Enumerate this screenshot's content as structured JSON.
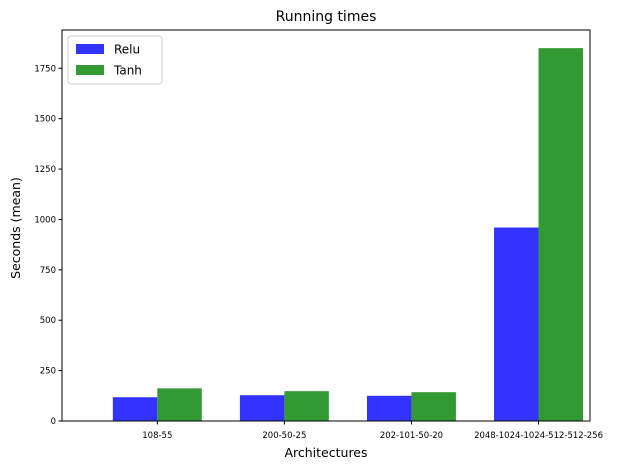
{
  "chart_data": {
    "type": "bar",
    "title": "Running times",
    "xlabel": "Architectures",
    "ylabel": "Seconds (mean)",
    "categories": [
      "108-55",
      "200-50-25",
      "202-101-50-20",
      "2048-1024-1024-512-512-256"
    ],
    "series": [
      {
        "name": "Relu",
        "color": "#3333ff",
        "values": [
          118,
          128,
          125,
          960
        ]
      },
      {
        "name": "Tanh",
        "color": "#339933",
        "values": [
          162,
          148,
          143,
          1850
        ]
      }
    ],
    "ylim": [
      0,
      1940
    ],
    "yticks": [
      0,
      250,
      500,
      750,
      1000,
      1250,
      1500,
      1750
    ],
    "grid": false,
    "legend": "top-left"
  }
}
